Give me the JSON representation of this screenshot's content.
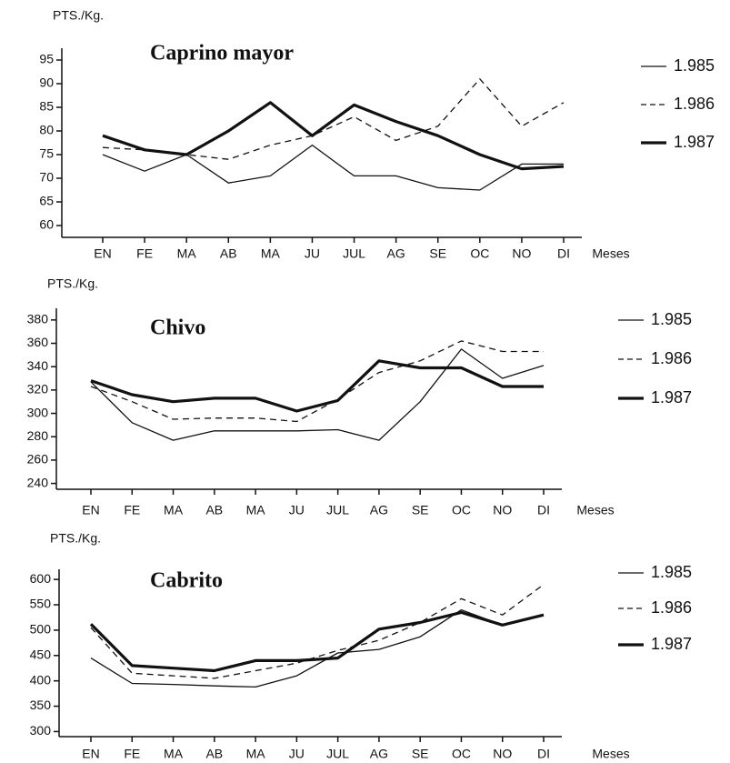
{
  "chart_data": [
    {
      "type": "line",
      "title": "Caprino mayor",
      "y_label": "PTS./Kg.",
      "x_label": "Meses",
      "categories": [
        "EN",
        "FE",
        "MA",
        "AB",
        "MA",
        "JU",
        "JUL",
        "AG",
        "SE",
        "OC",
        "NO",
        "DI"
      ],
      "ylim": [
        57.5,
        97.5
      ],
      "yticks": [
        60,
        65,
        70,
        75,
        80,
        85,
        90,
        95
      ],
      "legend": "right",
      "series": [
        {
          "name": "1.985",
          "color": "#111111",
          "style": "thin",
          "values": [
            75,
            71.5,
            75,
            69,
            70.5,
            77,
            70.5,
            70.5,
            68,
            67.5,
            73,
            73
          ]
        },
        {
          "name": "1.986",
          "color": "#111111",
          "style": "dashed",
          "values": [
            76.5,
            76,
            75,
            74,
            77,
            79,
            83,
            78,
            81,
            91,
            81,
            86
          ]
        },
        {
          "name": "1.987",
          "color": "#111111",
          "style": "thick",
          "values": [
            79,
            76,
            75,
            80,
            86,
            79,
            85.5,
            82,
            79,
            75,
            72,
            72.5
          ]
        }
      ]
    },
    {
      "type": "line",
      "title": "Chivo",
      "y_label": "PTS./Kg.",
      "x_label": "Meses",
      "categories": [
        "EN",
        "FE",
        "MA",
        "AB",
        "MA",
        "JU",
        "JUL",
        "AG",
        "SE",
        "OC",
        "NO",
        "DI"
      ],
      "ylim": [
        235,
        390
      ],
      "yticks": [
        240,
        260,
        280,
        300,
        320,
        340,
        360,
        380
      ],
      "legend": "right",
      "series": [
        {
          "name": "1.985",
          "color": "#111111",
          "style": "thin",
          "values": [
            327,
            292,
            277,
            285,
            285,
            285,
            286,
            277,
            310,
            355,
            330,
            341
          ]
        },
        {
          "name": "1.986",
          "color": "#111111",
          "style": "dashed",
          "values": [
            323,
            310,
            295,
            296,
            296,
            293,
            312,
            335,
            345,
            362,
            353,
            353
          ]
        },
        {
          "name": "1.987",
          "color": "#111111",
          "style": "thick",
          "values": [
            328,
            316,
            310,
            313,
            313,
            302,
            311,
            345,
            339,
            339,
            323,
            323
          ]
        }
      ]
    },
    {
      "type": "line",
      "title": "Cabrito",
      "y_label": "PTS./Kg.",
      "x_label": "Meses",
      "categories": [
        "EN",
        "FE",
        "MA",
        "AB",
        "MA",
        "JU",
        "JUL",
        "AG",
        "SE",
        "OC",
        "NO",
        "DI"
      ],
      "ylim": [
        290,
        620
      ],
      "yticks": [
        300,
        350,
        400,
        450,
        500,
        550,
        600
      ],
      "legend": "right",
      "series": [
        {
          "name": "1.985",
          "color": "#111111",
          "style": "thin",
          "values": [
            445,
            395,
            393,
            390,
            388,
            410,
            455,
            462,
            487,
            540,
            510,
            530
          ]
        },
        {
          "name": "1.986",
          "color": "#111111",
          "style": "dashed",
          "values": [
            505,
            415,
            410,
            405,
            420,
            435,
            460,
            480,
            515,
            562,
            530,
            590
          ]
        },
        {
          "name": "1.987",
          "color": "#111111",
          "style": "thick",
          "values": [
            512,
            430,
            425,
            420,
            440,
            440,
            445,
            502,
            515,
            535,
            510,
            530
          ]
        }
      ]
    }
  ]
}
